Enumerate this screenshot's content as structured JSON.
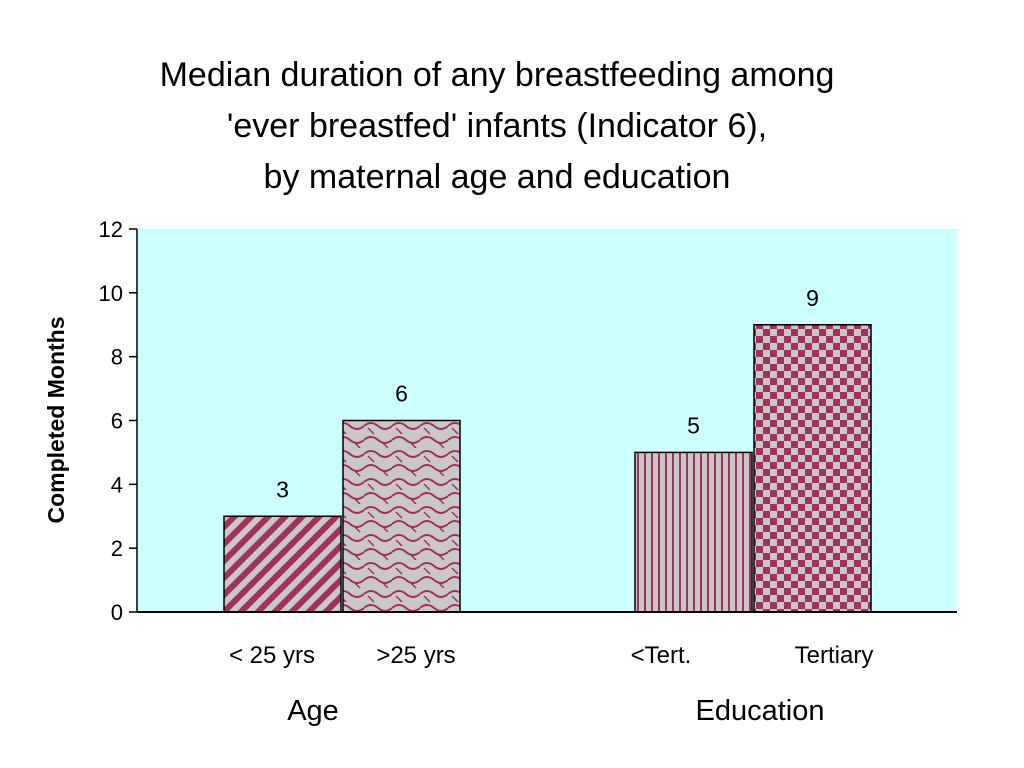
{
  "chart_data": {
    "type": "bar",
    "title_lines": [
      "Median duration of any breastfeeding among",
      "'ever breastfed' infants (Indicator 6),",
      "by maternal age and education"
    ],
    "ylabel": "Completed Months",
    "ylim": [
      0,
      12
    ],
    "yticks": [
      "0",
      "2",
      "4",
      "6",
      "8",
      "10",
      "12"
    ],
    "grid": false,
    "plot_background": "#ccffff",
    "groups": [
      {
        "label": "Age",
        "bars": [
          {
            "category": "< 25 yrs",
            "value": 3,
            "value_label": "3",
            "pattern": "diagonal-stripes"
          },
          {
            "category": ">25 yrs",
            "value": 6,
            "value_label": "6",
            "pattern": "wave"
          }
        ]
      },
      {
        "label": "Education",
        "bars": [
          {
            "category": "<Tert.",
            "value": 5,
            "value_label": "5",
            "pattern": "vertical-stripes"
          },
          {
            "category": "Tertiary",
            "value": 9,
            "value_label": "9",
            "pattern": "checkerboard"
          }
        ]
      }
    ],
    "colors": {
      "pattern_dark": "#a3305e",
      "pattern_light": "#c8c8c8",
      "axis": "#000000"
    }
  }
}
